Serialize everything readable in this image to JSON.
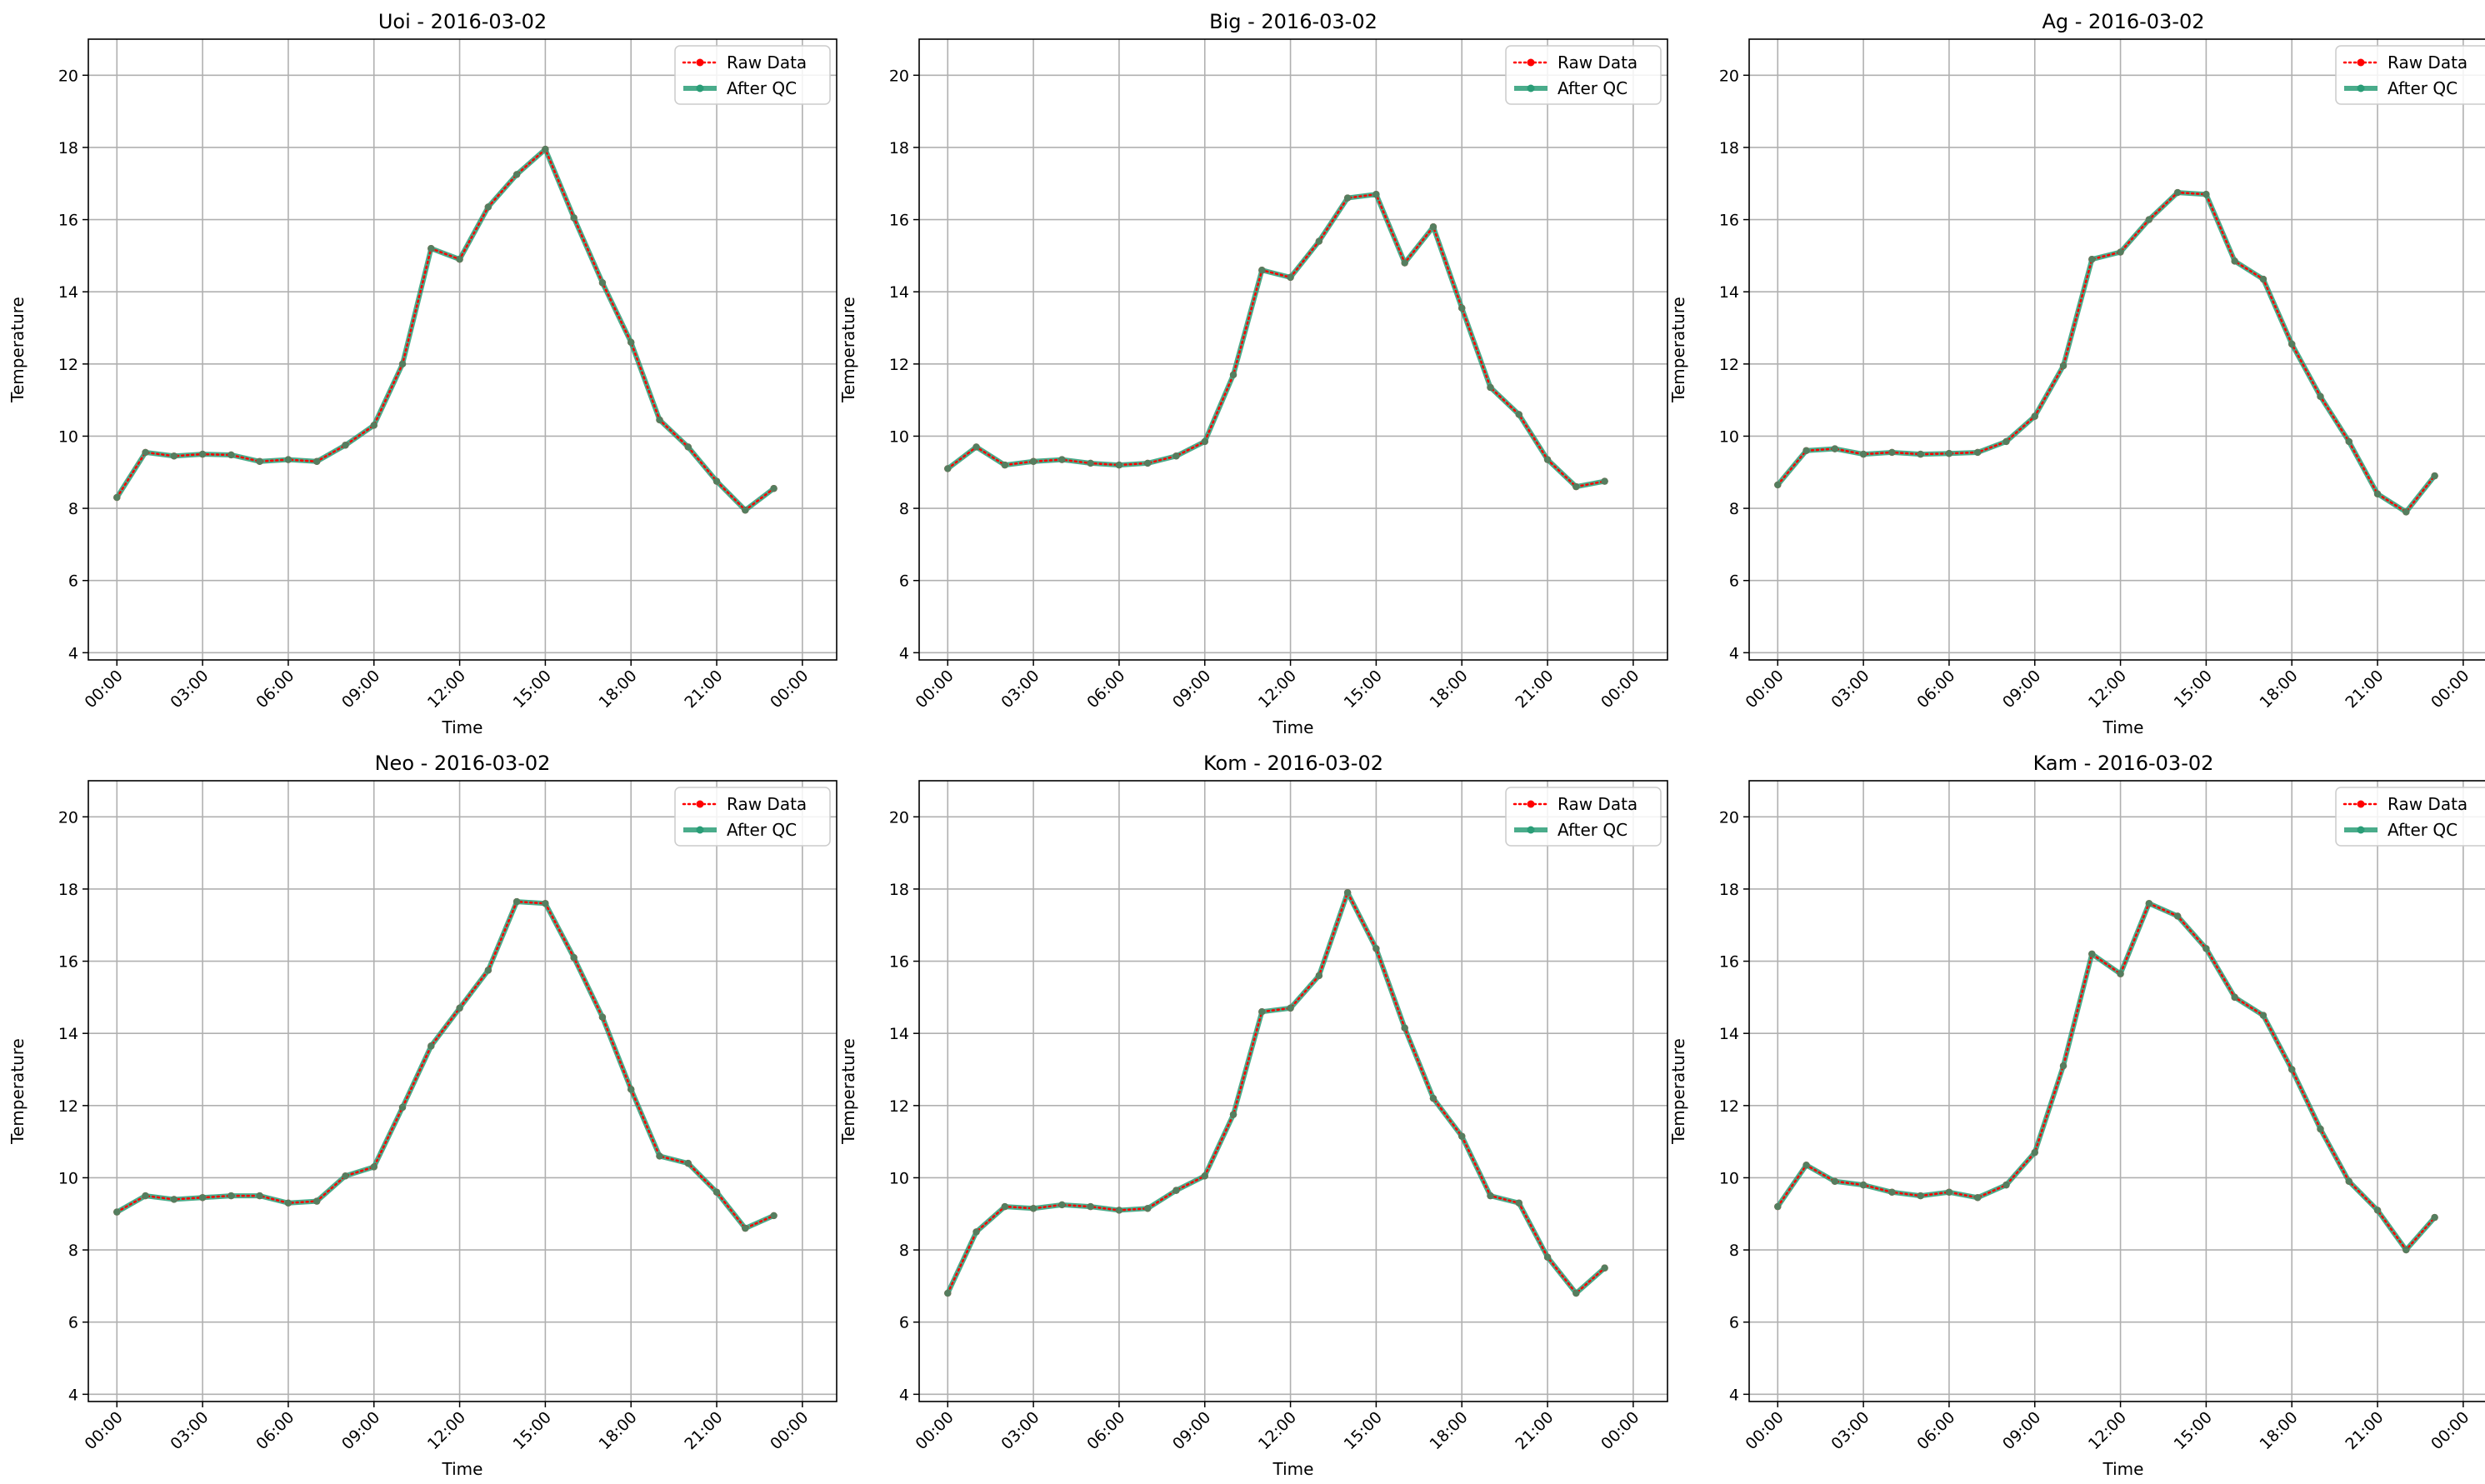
{
  "figure": {
    "x_ticks": [
      "00:00",
      "03:00",
      "06:00",
      "09:00",
      "12:00",
      "15:00",
      "18:00",
      "21:00",
      "00:00"
    ],
    "y_ticks": [
      4,
      6,
      8,
      10,
      12,
      14,
      16,
      18,
      20
    ],
    "colors": {
      "raw": "#ff0000",
      "qc": "#2a9d77",
      "grid": "#b0b0b0"
    }
  },
  "chart_data": [
    {
      "type": "line",
      "title": "Uoi - 2016-03-02",
      "xlabel": "Time",
      "ylabel": "Temperature",
      "xlim": [
        "2016-03-02 00:00",
        "2016-03-03 00:00"
      ],
      "ylim": [
        3.8,
        21
      ],
      "grid": true,
      "legend": "top-right",
      "x": [
        "00:00",
        "01:00",
        "02:00",
        "03:00",
        "04:00",
        "05:00",
        "06:00",
        "07:00",
        "08:00",
        "09:00",
        "10:00",
        "11:00",
        "12:00",
        "13:00",
        "14:00",
        "15:00",
        "16:00",
        "17:00",
        "18:00",
        "19:00",
        "20:00",
        "21:00",
        "22:00",
        "23:00"
      ],
      "series": [
        {
          "name": "Raw Data",
          "values": [
            8.3,
            9.55,
            9.45,
            9.5,
            9.48,
            9.3,
            9.35,
            9.3,
            9.75,
            10.3,
            12.0,
            15.2,
            14.9,
            16.35,
            17.25,
            17.95,
            16.05,
            14.25,
            12.6,
            10.45,
            9.7,
            8.75,
            7.95,
            8.55
          ]
        },
        {
          "name": "After QC",
          "values": [
            8.3,
            9.55,
            9.45,
            9.5,
            9.48,
            9.3,
            9.35,
            9.3,
            9.75,
            10.3,
            12.0,
            15.2,
            14.9,
            16.35,
            17.25,
            17.95,
            16.05,
            14.25,
            12.6,
            10.45,
            9.7,
            8.75,
            7.95,
            8.55
          ]
        }
      ]
    },
    {
      "type": "line",
      "title": "Big - 2016-03-02",
      "xlabel": "Time",
      "ylabel": "Temperature",
      "xlim": [
        "2016-03-02 00:00",
        "2016-03-03 00:00"
      ],
      "ylim": [
        3.8,
        21
      ],
      "grid": true,
      "legend": "top-right",
      "x": [
        "00:00",
        "01:00",
        "02:00",
        "03:00",
        "04:00",
        "05:00",
        "06:00",
        "07:00",
        "08:00",
        "09:00",
        "10:00",
        "11:00",
        "12:00",
        "13:00",
        "14:00",
        "15:00",
        "16:00",
        "17:00",
        "18:00",
        "19:00",
        "20:00",
        "21:00",
        "22:00",
        "23:00"
      ],
      "series": [
        {
          "name": "Raw Data",
          "values": [
            9.1,
            9.7,
            9.2,
            9.3,
            9.35,
            9.25,
            9.2,
            9.25,
            9.45,
            9.85,
            11.7,
            14.6,
            14.4,
            15.4,
            16.6,
            16.7,
            14.8,
            15.8,
            13.55,
            11.35,
            10.6,
            9.35,
            8.6,
            8.75
          ]
        },
        {
          "name": "After QC",
          "values": [
            9.1,
            9.7,
            9.2,
            9.3,
            9.35,
            9.25,
            9.2,
            9.25,
            9.45,
            9.85,
            11.7,
            14.6,
            14.4,
            15.4,
            16.6,
            16.7,
            14.8,
            15.8,
            13.55,
            11.35,
            10.6,
            9.35,
            8.6,
            8.75
          ]
        }
      ]
    },
    {
      "type": "line",
      "title": "Ag - 2016-03-02",
      "xlabel": "Time",
      "ylabel": "Temperature",
      "xlim": [
        "2016-03-02 00:00",
        "2016-03-03 00:00"
      ],
      "ylim": [
        3.8,
        21
      ],
      "grid": true,
      "legend": "top-right",
      "x": [
        "00:00",
        "01:00",
        "02:00",
        "03:00",
        "04:00",
        "05:00",
        "06:00",
        "07:00",
        "08:00",
        "09:00",
        "10:00",
        "11:00",
        "12:00",
        "13:00",
        "14:00",
        "15:00",
        "16:00",
        "17:00",
        "18:00",
        "19:00",
        "20:00",
        "21:00",
        "22:00",
        "23:00"
      ],
      "series": [
        {
          "name": "Raw Data",
          "values": [
            8.65,
            9.6,
            9.65,
            9.5,
            9.55,
            9.5,
            9.52,
            9.55,
            9.85,
            10.55,
            11.95,
            14.9,
            15.1,
            16.0,
            16.75,
            16.7,
            14.85,
            14.35,
            12.55,
            11.1,
            9.85,
            8.4,
            7.9,
            8.9
          ]
        },
        {
          "name": "After QC",
          "values": [
            8.65,
            9.6,
            9.65,
            9.5,
            9.55,
            9.5,
            9.52,
            9.55,
            9.85,
            10.55,
            11.95,
            14.9,
            15.1,
            16.0,
            16.75,
            16.7,
            14.85,
            14.35,
            12.55,
            11.1,
            9.85,
            8.4,
            7.9,
            8.9
          ]
        }
      ]
    },
    {
      "type": "line",
      "title": "Neo - 2016-03-02",
      "xlabel": "Time",
      "ylabel": "Temperature",
      "xlim": [
        "2016-03-02 00:00",
        "2016-03-03 00:00"
      ],
      "ylim": [
        3.8,
        21
      ],
      "grid": true,
      "legend": "top-right",
      "x": [
        "00:00",
        "01:00",
        "02:00",
        "03:00",
        "04:00",
        "05:00",
        "06:00",
        "07:00",
        "08:00",
        "09:00",
        "10:00",
        "11:00",
        "12:00",
        "13:00",
        "14:00",
        "15:00",
        "16:00",
        "17:00",
        "18:00",
        "19:00",
        "20:00",
        "21:00",
        "22:00",
        "23:00"
      ],
      "series": [
        {
          "name": "Raw Data",
          "values": [
            9.05,
            9.5,
            9.4,
            9.45,
            9.5,
            9.5,
            9.3,
            9.35,
            10.05,
            10.3,
            11.95,
            13.65,
            14.7,
            15.75,
            17.65,
            17.6,
            16.1,
            14.45,
            12.45,
            10.6,
            10.4,
            9.6,
            8.6,
            8.95
          ]
        },
        {
          "name": "After QC",
          "values": [
            9.05,
            9.5,
            9.4,
            9.45,
            9.5,
            9.5,
            9.3,
            9.35,
            10.05,
            10.3,
            11.95,
            13.65,
            14.7,
            15.75,
            17.65,
            17.6,
            16.1,
            14.45,
            12.45,
            10.6,
            10.4,
            9.6,
            8.6,
            8.95
          ]
        }
      ]
    },
    {
      "type": "line",
      "title": "Kom - 2016-03-02",
      "xlabel": "Time",
      "ylabel": "Temperature",
      "xlim": [
        "2016-03-02 00:00",
        "2016-03-03 00:00"
      ],
      "ylim": [
        3.8,
        21
      ],
      "grid": true,
      "legend": "top-right",
      "x": [
        "00:00",
        "01:00",
        "02:00",
        "03:00",
        "04:00",
        "05:00",
        "06:00",
        "07:00",
        "08:00",
        "09:00",
        "10:00",
        "11:00",
        "12:00",
        "13:00",
        "14:00",
        "15:00",
        "16:00",
        "17:00",
        "18:00",
        "19:00",
        "20:00",
        "21:00",
        "22:00",
        "23:00"
      ],
      "series": [
        {
          "name": "Raw Data",
          "values": [
            6.8,
            8.5,
            9.2,
            9.15,
            9.25,
            9.2,
            9.1,
            9.15,
            9.65,
            10.05,
            11.75,
            14.6,
            14.7,
            15.6,
            17.9,
            16.35,
            14.15,
            12.2,
            11.15,
            9.5,
            9.3,
            7.8,
            6.8,
            7.5
          ]
        },
        {
          "name": "After QC",
          "values": [
            6.8,
            8.5,
            9.2,
            9.15,
            9.25,
            9.2,
            9.1,
            9.15,
            9.65,
            10.05,
            11.75,
            14.6,
            14.7,
            15.6,
            17.9,
            16.35,
            14.15,
            12.2,
            11.15,
            9.5,
            9.3,
            7.8,
            6.8,
            7.5
          ]
        }
      ]
    },
    {
      "type": "line",
      "title": "Kam - 2016-03-02",
      "xlabel": "Time",
      "ylabel": "Temperature",
      "xlim": [
        "2016-03-02 00:00",
        "2016-03-03 00:00"
      ],
      "ylim": [
        3.8,
        21
      ],
      "grid": true,
      "legend": "top-right",
      "x": [
        "00:00",
        "01:00",
        "02:00",
        "03:00",
        "04:00",
        "05:00",
        "06:00",
        "07:00",
        "08:00",
        "09:00",
        "10:00",
        "11:00",
        "12:00",
        "13:00",
        "14:00",
        "15:00",
        "16:00",
        "17:00",
        "18:00",
        "19:00",
        "20:00",
        "21:00",
        "22:00",
        "23:00"
      ],
      "series": [
        {
          "name": "Raw Data",
          "values": [
            9.2,
            10.35,
            9.9,
            9.8,
            9.6,
            9.5,
            9.6,
            9.45,
            9.8,
            10.7,
            13.1,
            16.2,
            15.65,
            17.6,
            17.25,
            16.35,
            15.0,
            14.5,
            13.0,
            11.35,
            9.9,
            9.1,
            8.0,
            8.9
          ]
        },
        {
          "name": "After QC",
          "values": [
            9.2,
            10.35,
            9.9,
            9.8,
            9.6,
            9.5,
            9.6,
            9.45,
            9.8,
            10.7,
            13.1,
            16.2,
            15.65,
            17.6,
            17.25,
            16.35,
            15.0,
            14.5,
            13.0,
            11.35,
            9.9,
            9.1,
            8.0,
            8.9
          ]
        }
      ]
    }
  ]
}
